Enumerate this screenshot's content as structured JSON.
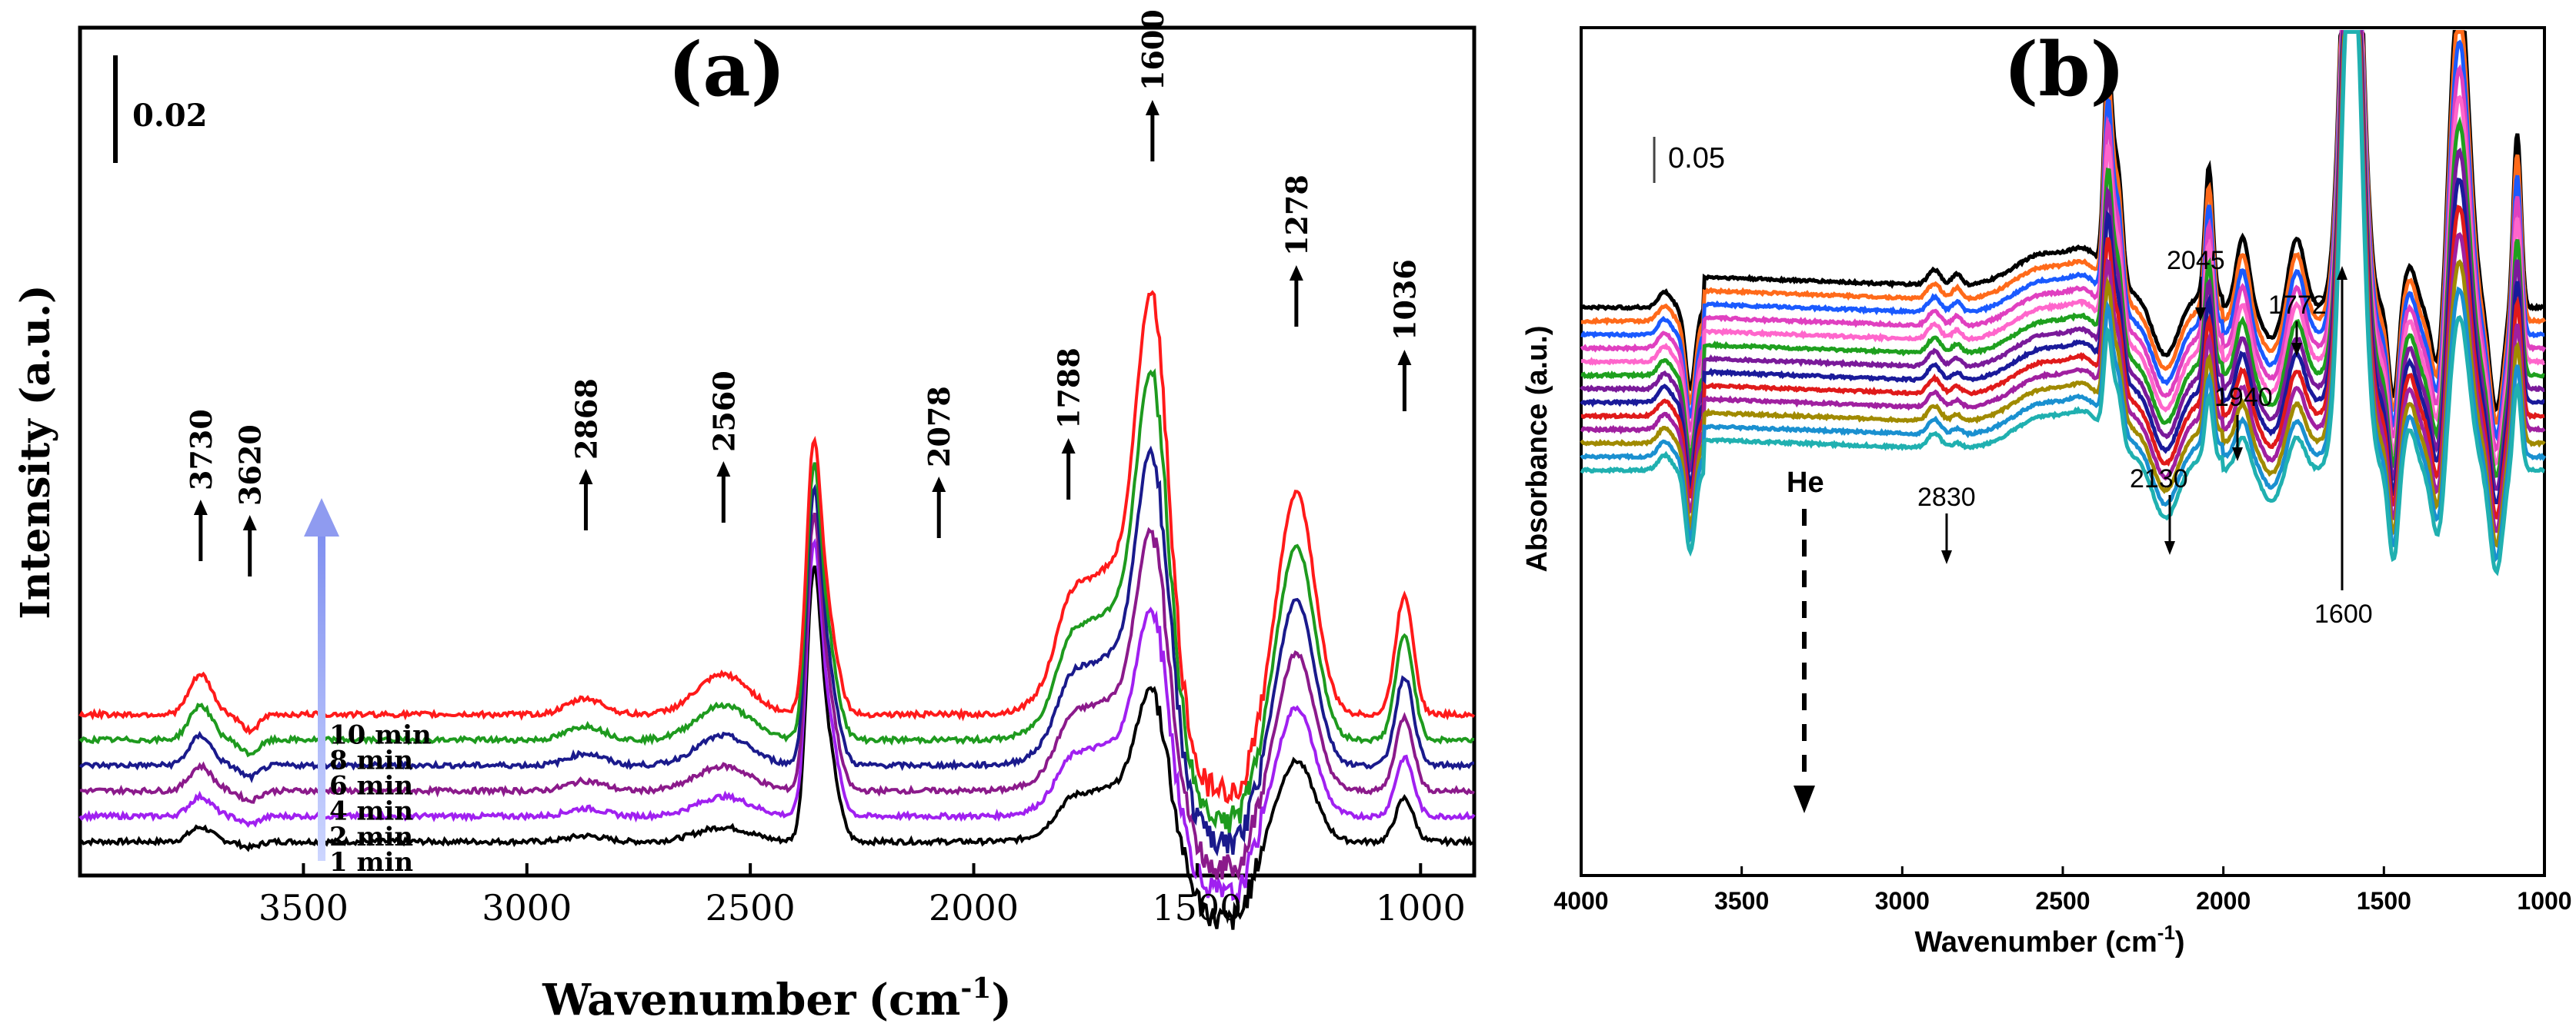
{
  "chart_data": [
    {
      "type": "line",
      "panel_label": "(a)",
      "xlabel": "Wavenumber",
      "xlabel_unit": "(cm",
      "xlabel_sup": "-1",
      "xlabel_close": ")",
      "ylabel": "Intensity (a.u.)",
      "xlim": [
        4000,
        880
      ],
      "xticks": [
        3500,
        3000,
        2500,
        2000,
        1500,
        1000
      ],
      "scale_bar": "0.02",
      "peaks": [
        "3730",
        "3620",
        "2868",
        "2560",
        "2078",
        "1788",
        "1600",
        "1278",
        "1036"
      ],
      "peak_x": [
        3730,
        3620,
        2868,
        2560,
        2078,
        1788,
        1600,
        1278,
        1036
      ],
      "series": [
        {
          "name": "1 min",
          "color": "#000000",
          "base": 0.04
        },
        {
          "name": "2 min",
          "color": "#a020f0",
          "base": 0.07
        },
        {
          "name": "4 min",
          "color": "#8b1a8b",
          "base": 0.1
        },
        {
          "name": "6 min",
          "color": "#1a1a8c",
          "base": 0.13
        },
        {
          "name": "8 min",
          "color": "#1e9a1e",
          "base": 0.16
        },
        {
          "name": "10 min",
          "color": "#ff1a1a",
          "base": 0.19
        }
      ],
      "series_labels": [
        "1 min",
        "2 min",
        "4 min",
        "6 min",
        "8 min",
        "10 min"
      ]
    },
    {
      "type": "line",
      "panel_label": "(b)",
      "xlabel": "Wavenumber (cm",
      "xlabel_sup": "-1",
      "xlabel_close": ")",
      "ylabel": "Absorbance (a.u.)",
      "xlim": [
        4000,
        1000
      ],
      "xticks": [
        4000,
        3500,
        3000,
        2500,
        2000,
        1500,
        1000
      ],
      "scale_bar": "0.05",
      "annotation_He": "He",
      "peaks": [
        "2830",
        "2130",
        "2045",
        "1940",
        "1772",
        "1600"
      ],
      "series_colors": [
        "#000000",
        "#ff6a1a",
        "#1a5aff",
        "#e040c0",
        "#ff66cc",
        "#1ea01e",
        "#7a1a9a",
        "#1a1a9a",
        "#e01a1a",
        "#a020a0",
        "#a08a00",
        "#1a90d0",
        "#20b0b0"
      ]
    }
  ]
}
